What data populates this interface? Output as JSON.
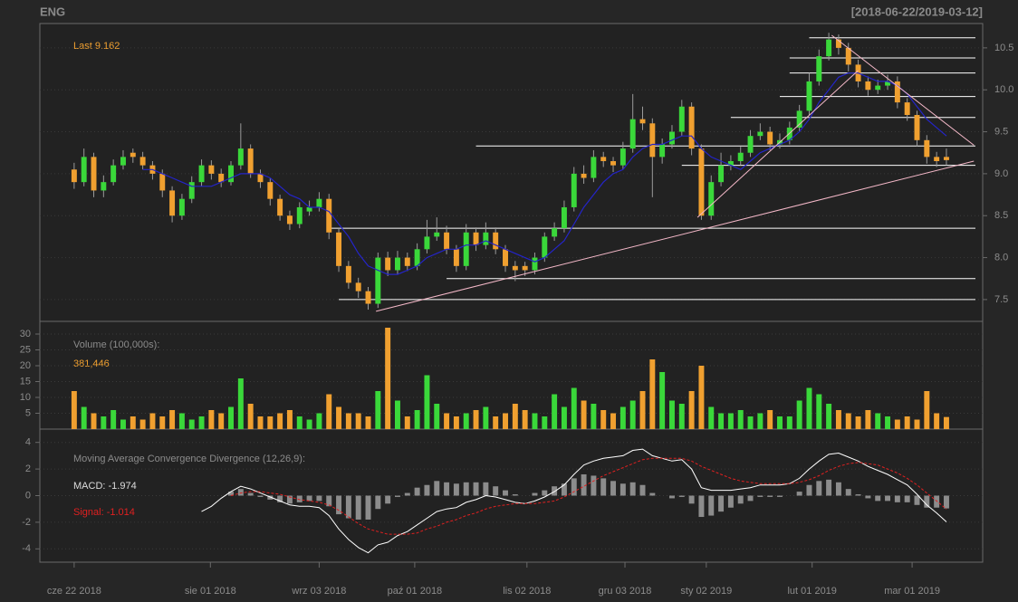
{
  "chart_data": {
    "type": "candlestick",
    "title": "ENG",
    "date_range": "[2018-06-22/2019-03-12]",
    "last_label": "Last 9.162",
    "xlim": [
      -3.5,
      92.7
    ],
    "xticks": [
      {
        "value": 0,
        "label": "cze 22 2018"
      },
      {
        "value": 13.9,
        "label": "sie 01 2018"
      },
      {
        "value": 25,
        "label": "wrz 03 2018"
      },
      {
        "value": 34.75,
        "label": "paź 01 2018"
      },
      {
        "value": 46.2,
        "label": "lis 02 2018"
      },
      {
        "value": 56.2,
        "label": "gru 03 2018"
      },
      {
        "value": 64.5,
        "label": "sty 02 2019"
      },
      {
        "value": 75.3,
        "label": "lut 01 2019"
      },
      {
        "value": 85.5,
        "label": "mar 01 2019"
      }
    ],
    "open": [
      9.05,
      8.9,
      9.2,
      8.8,
      8.9,
      9.1,
      9.25,
      9.2,
      9.1,
      9.0,
      8.8,
      8.5,
      8.7,
      8.9,
      9.1,
      9.0,
      8.9,
      9.1,
      9.3,
      9.0,
      8.9,
      8.7,
      8.5,
      8.4,
      8.55,
      8.6,
      8.7,
      8.3,
      7.9,
      7.7,
      7.6,
      7.45,
      8.0,
      7.85,
      8.0,
      7.9,
      8.1,
      8.25,
      8.3,
      8.1,
      7.9,
      8.3,
      8.15,
      8.3,
      8.1,
      7.9,
      7.9,
      7.85,
      8.0,
      8.25,
      8.35,
      8.6,
      9.0,
      8.95,
      9.2,
      9.15,
      9.1,
      9.3,
      9.65,
      9.6,
      9.2,
      9.35,
      9.5,
      9.8,
      9.3,
      8.5,
      8.9,
      9.1,
      9.15,
      9.25,
      9.45,
      9.5,
      9.35,
      9.4,
      9.55,
      9.75,
      10.1,
      10.4,
      10.6,
      10.5,
      10.3,
      10.1,
      10.0,
      10.05,
      10.1,
      9.85,
      9.7,
      9.4,
      9.2,
      9.2
    ],
    "high": [
      9.13,
      9.3,
      9.25,
      8.98,
      9.17,
      9.28,
      9.3,
      9.26,
      9.15,
      9.05,
      8.85,
      8.76,
      8.97,
      9.17,
      9.16,
      9.06,
      9.15,
      9.6,
      9.35,
      9.05,
      8.95,
      8.75,
      8.56,
      8.66,
      8.68,
      8.78,
      8.76,
      8.35,
      7.96,
      7.76,
      7.65,
      8.06,
      8.07,
      8.08,
      8.06,
      8.17,
      8.45,
      8.48,
      8.38,
      8.15,
      8.4,
      8.36,
      8.42,
      8.36,
      8.15,
      7.96,
      7.95,
      8.06,
      8.3,
      8.42,
      8.68,
      9.08,
      9.1,
      9.28,
      9.26,
      9.2,
      9.38,
      9.95,
      9.8,
      9.66,
      9.42,
      9.58,
      9.88,
      9.85,
      9.35,
      8.98,
      9.25,
      9.22,
      9.32,
      9.52,
      9.6,
      9.56,
      9.48,
      9.62,
      9.82,
      10.2,
      10.48,
      10.68,
      10.66,
      10.56,
      10.36,
      10.16,
      10.12,
      10.18,
      10.16,
      9.9,
      9.75,
      9.46,
      9.26,
      9.3
    ],
    "low": [
      8.82,
      8.85,
      8.72,
      8.72,
      8.86,
      9.05,
      9.13,
      9.05,
      8.93,
      8.72,
      8.42,
      8.45,
      8.65,
      8.85,
      8.93,
      8.84,
      8.86,
      9.05,
      8.95,
      8.83,
      8.62,
      8.44,
      8.33,
      8.35,
      8.5,
      8.55,
      8.22,
      7.83,
      7.63,
      7.52,
      7.38,
      7.4,
      7.78,
      7.8,
      7.84,
      7.85,
      8.05,
      8.2,
      8.04,
      7.83,
      7.85,
      8.08,
      8.1,
      8.04,
      7.83,
      7.72,
      7.78,
      7.8,
      7.95,
      8.2,
      8.3,
      8.55,
      8.88,
      8.9,
      9.08,
      9.02,
      9.05,
      9.25,
      9.52,
      8.72,
      9.12,
      9.3,
      9.45,
      9.22,
      8.45,
      8.45,
      8.85,
      9.04,
      9.1,
      9.2,
      9.4,
      9.28,
      9.3,
      9.35,
      9.5,
      9.7,
      10.05,
      10.35,
      10.42,
      10.22,
      10.03,
      9.93,
      9.95,
      10.0,
      9.78,
      9.63,
      9.33,
      9.12,
      9.08,
      9.1
    ],
    "close": [
      8.9,
      9.2,
      8.8,
      8.9,
      9.1,
      9.2,
      9.2,
      9.1,
      9.0,
      8.8,
      8.5,
      8.7,
      8.9,
      9.1,
      9.0,
      8.9,
      9.1,
      9.3,
      9.0,
      8.9,
      8.7,
      8.5,
      8.4,
      8.6,
      8.6,
      8.7,
      8.3,
      7.9,
      7.7,
      7.6,
      7.45,
      8.0,
      7.85,
      8.0,
      7.9,
      8.1,
      8.25,
      8.3,
      8.1,
      7.9,
      8.3,
      8.15,
      8.3,
      8.1,
      7.9,
      7.85,
      7.85,
      8.0,
      8.25,
      8.35,
      8.6,
      9.0,
      8.95,
      9.2,
      9.15,
      9.1,
      9.3,
      9.65,
      9.6,
      9.2,
      9.35,
      9.5,
      9.8,
      9.3,
      8.5,
      8.9,
      9.1,
      9.15,
      9.25,
      9.45,
      9.5,
      9.35,
      9.4,
      9.55,
      9.75,
      10.1,
      10.4,
      10.6,
      10.5,
      10.3,
      10.1,
      10.0,
      10.05,
      10.1,
      9.85,
      9.7,
      9.4,
      9.2,
      9.15,
      9.162
    ],
    "up_color": "#3ad83a",
    "down_color": "#f0a030",
    "ylim": [
      7.24,
      10.79
    ],
    "yticks": [
      7.5,
      {
        "value": 8,
        "label": "8.0"
      },
      8.5,
      {
        "value": 9,
        "label": "9.0"
      },
      9.5,
      {
        "value": 10,
        "label": "10.0"
      },
      10.5
    ],
    "grid": true,
    "sma": {
      "color": "#2424c8",
      "values": [
        null,
        null,
        null,
        null,
        null,
        null,
        null,
        9.05,
        9.05,
        9.0,
        8.95,
        8.9,
        8.85,
        8.85,
        8.85,
        8.9,
        8.95,
        9.0,
        9.0,
        9.0,
        8.95,
        8.85,
        8.75,
        8.7,
        8.6,
        8.6,
        8.55,
        8.4,
        8.25,
        8.05,
        7.9,
        7.85,
        7.8,
        7.8,
        7.85,
        7.9,
        8.0,
        8.05,
        8.1,
        8.1,
        8.15,
        8.15,
        8.2,
        8.15,
        8.1,
        8.05,
        8.0,
        7.95,
        8.0,
        8.1,
        8.2,
        8.4,
        8.6,
        8.75,
        8.9,
        9.0,
        9.05,
        9.2,
        9.3,
        9.35,
        9.35,
        9.4,
        9.45,
        9.45,
        9.3,
        9.2,
        9.15,
        9.1,
        9.05,
        9.15,
        9.25,
        9.3,
        9.35,
        9.4,
        9.5,
        9.65,
        9.85,
        10.0,
        10.15,
        10.2,
        10.2,
        10.15,
        10.1,
        10.1,
        10.05,
        9.95,
        9.8,
        9.65,
        9.55,
        9.45
      ]
    },
    "levels": [
      {
        "value": 7.5,
        "start": 27
      },
      {
        "value": 7.75,
        "start": 38
      },
      {
        "value": 8.35,
        "start": 26
      },
      {
        "value": 9.1,
        "start": 62
      },
      {
        "value": 9.33,
        "start": 41
      },
      {
        "value": 9.67,
        "start": 67
      },
      {
        "value": 9.92,
        "start": 72
      },
      {
        "value": 10.2,
        "start": 73
      },
      {
        "value": 10.38,
        "start": 73
      },
      {
        "value": 10.62,
        "start": 75
      }
    ],
    "level_color": "#ffffff",
    "trendlines": {
      "color": "#f4b8c8",
      "lines": [
        {
          "x": [
            30.8,
            91.8
          ],
          "y": [
            7.36,
            9.15
          ]
        },
        {
          "x": [
            63.6,
            80
          ],
          "y": [
            8.48,
            10.23
          ]
        },
        {
          "x": [
            77.3,
            91.8
          ],
          "y": [
            10.65,
            9.34
          ]
        }
      ]
    },
    "volume": {
      "title": "Volume (100,000s):",
      "last_label": "381,446",
      "ylim": [
        0,
        34
      ],
      "yticks": [
        5,
        10,
        15,
        20,
        25,
        30
      ],
      "values": [
        12,
        7,
        5,
        4,
        6,
        3,
        4,
        3,
        5,
        4,
        6,
        5,
        3,
        4,
        6,
        5,
        7,
        16,
        8,
        4,
        4,
        5,
        6,
        4,
        3,
        5,
        11,
        7,
        5,
        5,
        4,
        12,
        32,
        9,
        4,
        6,
        17,
        8,
        5,
        4,
        5,
        6,
        7,
        4,
        5,
        8,
        6,
        5,
        4,
        11,
        7,
        13,
        9,
        8,
        6,
        5,
        7,
        9,
        12,
        22,
        18,
        9,
        8,
        12,
        20,
        7,
        5,
        5,
        6,
        4,
        5,
        6,
        4,
        4,
        9,
        13,
        11,
        8,
        6,
        5,
        4,
        6,
        5,
        4,
        3,
        4,
        3,
        12,
        5,
        3.81446
      ]
    },
    "macd": {
      "title": "Moving Average Convergence Divergence (12,26,9):",
      "macd_label": "MACD: -1.974",
      "signal_label": "Signal: -1.014",
      "ylim": [
        -5,
        5
      ],
      "yticks": [
        -4,
        -2,
        0,
        2,
        4
      ],
      "macd_color": "#ffffff",
      "signal_color": "#e02020",
      "histogram_color": "#8c8c8c",
      "macd": [
        null,
        null,
        null,
        null,
        null,
        null,
        null,
        null,
        null,
        null,
        null,
        null,
        null,
        -1.2,
        -0.8,
        -0.2,
        0.3,
        0.7,
        0.5,
        0.2,
        -0.1,
        -0.4,
        -0.7,
        -0.8,
        -0.8,
        -0.9,
        -1.5,
        -2.5,
        -3.3,
        -3.9,
        -4.3,
        -3.7,
        -3.5,
        -3.0,
        -2.7,
        -2.2,
        -1.7,
        -1.2,
        -1.0,
        -0.9,
        -0.5,
        -0.3,
        0.0,
        -0.1,
        -0.3,
        -0.5,
        -0.6,
        -0.4,
        -0.1,
        0.3,
        0.8,
        1.6,
        2.3,
        2.6,
        2.8,
        2.9,
        3.0,
        3.4,
        3.5,
        3.0,
        2.8,
        2.6,
        2.7,
        2.0,
        0.6,
        0.4,
        0.4,
        0.4,
        0.5,
        0.6,
        0.8,
        0.8,
        0.8,
        0.9,
        1.3,
        2.0,
        2.6,
        3.1,
        3.2,
        2.9,
        2.6,
        2.2,
        1.9,
        1.6,
        1.2,
        0.8,
        0.1,
        -0.7,
        -1.3,
        -1.974
      ],
      "signal": [
        null,
        null,
        null,
        null,
        null,
        null,
        null,
        null,
        null,
        null,
        null,
        null,
        null,
        null,
        null,
        null,
        0.0,
        0.2,
        0.3,
        0.3,
        0.2,
        0.1,
        -0.1,
        -0.3,
        -0.4,
        -0.5,
        -0.7,
        -1.1,
        -1.6,
        -2.1,
        -2.5,
        -2.7,
        -2.9,
        -2.9,
        -2.9,
        -2.8,
        -2.5,
        -2.3,
        -2.0,
        -1.8,
        -1.5,
        -1.3,
        -1.0,
        -0.8,
        -0.7,
        -0.6,
        -0.6,
        -0.6,
        -0.5,
        -0.4,
        -0.1,
        0.3,
        0.7,
        1.1,
        1.5,
        1.8,
        2.1,
        2.4,
        2.7,
        2.8,
        2.8,
        2.8,
        2.8,
        2.6,
        2.2,
        1.9,
        1.6,
        1.3,
        1.1,
        1.0,
        0.9,
        0.9,
        0.9,
        0.9,
        1.0,
        1.2,
        1.5,
        1.9,
        2.2,
        2.4,
        2.5,
        2.4,
        2.3,
        2.0,
        1.7,
        1.3,
        0.8,
        0.2,
        -0.4,
        -1.014
      ],
      "histogram": [
        null,
        null,
        null,
        null,
        null,
        null,
        null,
        null,
        null,
        null,
        null,
        null,
        null,
        null,
        null,
        null,
        0.3,
        0.5,
        0.2,
        -0.1,
        -0.3,
        -0.5,
        -0.6,
        -0.5,
        -0.4,
        -0.4,
        -0.8,
        -1.4,
        -1.7,
        -1.8,
        -1.8,
        -1.0,
        -0.6,
        -0.1,
        0.2,
        0.6,
        0.8,
        1.1,
        1.0,
        0.9,
        1.0,
        1.0,
        1.0,
        0.7,
        0.4,
        0.1,
        0.0,
        0.2,
        0.4,
        0.7,
        0.9,
        1.3,
        1.6,
        1.5,
        1.3,
        1.1,
        0.9,
        1.0,
        0.8,
        0.2,
        0.0,
        -0.2,
        -0.1,
        -0.6,
        -1.6,
        -1.5,
        -1.2,
        -0.9,
        -0.6,
        -0.4,
        -0.1,
        -0.1,
        -0.1,
        0.0,
        0.3,
        0.8,
        1.1,
        1.2,
        1.0,
        0.5,
        0.1,
        -0.2,
        -0.4,
        -0.4,
        -0.5,
        -0.5,
        -0.7,
        -0.9,
        -0.9,
        -0.96
      ]
    }
  }
}
